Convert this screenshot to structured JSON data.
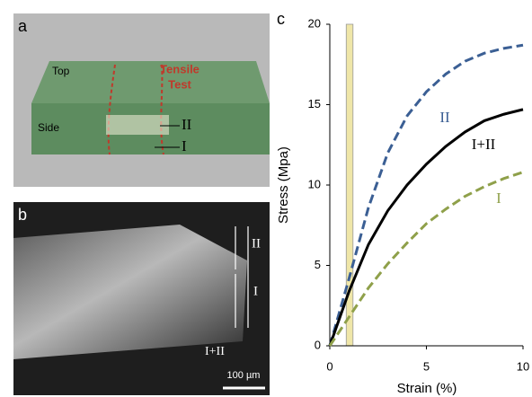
{
  "panels": {
    "a": {
      "letter": "a",
      "top": "Top",
      "side": "Side",
      "tensile": [
        "Tensile",
        "Test"
      ],
      "region_ii": "II",
      "region_i": "I"
    },
    "b": {
      "letter": "b",
      "region_ii": "II",
      "region_i": "I",
      "region_both": "I+II",
      "scale": "100 µm"
    }
  },
  "chart_data": {
    "type": "line",
    "panel_letter": "c",
    "x_label": "Strain (%)",
    "y_label": "Stress (Mpa)",
    "x": [
      0,
      1,
      2,
      3,
      4,
      5,
      6,
      7,
      8,
      9,
      10
    ],
    "series": [
      {
        "name": "II",
        "color": "#3b5f94",
        "dashed": true,
        "values": [
          0,
          4.2,
          8.6,
          12.0,
          14.3,
          15.8,
          16.9,
          17.7,
          18.2,
          18.5,
          18.7
        ]
      },
      {
        "name": "I+II",
        "color": "#000000",
        "dashed": false,
        "values": [
          0,
          3.4,
          6.3,
          8.4,
          10.0,
          11.3,
          12.4,
          13.3,
          14.0,
          14.4,
          14.7
        ]
      },
      {
        "name": "I",
        "color": "#8fa04a",
        "dashed": true,
        "values": [
          0,
          1.8,
          3.6,
          5.1,
          6.4,
          7.6,
          8.5,
          9.3,
          9.9,
          10.4,
          10.8
        ]
      }
    ],
    "highlight_x": [
      0.85,
      1.2
    ],
    "highlight_color": "#efe6a8",
    "xlim": [
      0,
      10
    ],
    "xticks": [
      0,
      5,
      10
    ],
    "ylim": [
      0,
      20
    ],
    "yticks": [
      0,
      5,
      10,
      15,
      20
    ]
  }
}
